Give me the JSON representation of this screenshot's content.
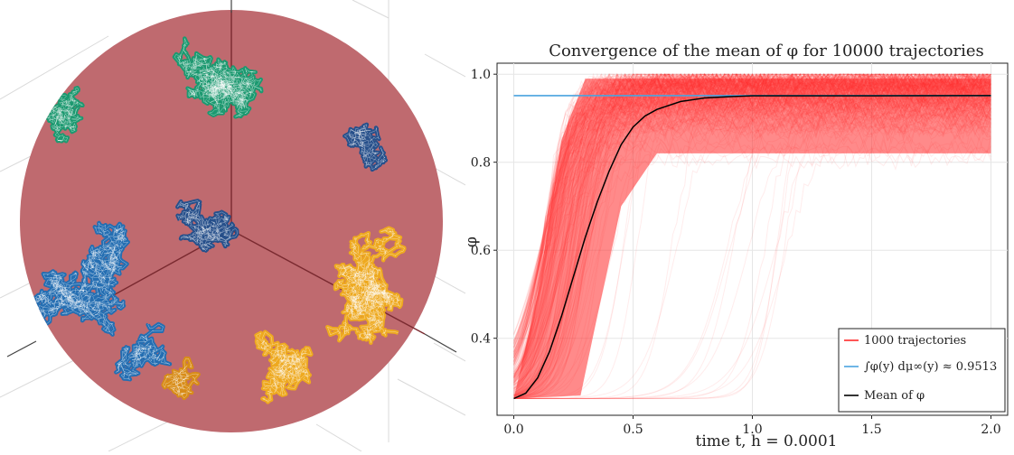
{
  "chart_data": [
    {
      "type": "3d-scatter",
      "description_note": "",
      "sphere_color": "#b9595f",
      "trajectory_colors": [
        "#139c70",
        "#1f4f8c",
        "#f0ad1a",
        "#1b6fb5",
        "#d98e12"
      ]
    },
    {
      "type": "line",
      "title": "Convergence of the mean of φ for 10000 trajectories",
      "xlabel": "time t,   h = 0.0001",
      "ylabel": "φ",
      "xlim": [
        -0.07,
        2.07
      ],
      "ylim": [
        0.225,
        1.025
      ],
      "xticks": [
        0.0,
        0.5,
        1.0,
        1.5,
        2.0
      ],
      "xtick_labels": [
        "0.0",
        "0.5",
        "1.0",
        "1.5",
        "2.0"
      ],
      "yticks": [
        0.4,
        0.6,
        0.8,
        1.0
      ],
      "ytick_labels": [
        "0.4",
        "0.6",
        "0.8",
        "1.0"
      ],
      "grid": true,
      "legend_position": "bottom-right",
      "series": [
        {
          "name": "1000 trajectories",
          "color": "#ff2a2a",
          "kind": "trajectories",
          "start_value": 0.263,
          "max_value": 1.0,
          "count_drawn": 1000
        },
        {
          "name": "∫φ(y) dμ∞(y) ≈ 0.9513",
          "color": "#4aa3df",
          "kind": "constant",
          "value": 0.9513,
          "x": [
            0.0,
            2.0
          ]
        },
        {
          "name": "Mean of φ",
          "color": "#000000",
          "kind": "mean",
          "x": [
            0.0,
            0.05,
            0.1,
            0.15,
            0.2,
            0.25,
            0.3,
            0.35,
            0.4,
            0.45,
            0.5,
            0.55,
            0.6,
            0.7,
            0.8,
            0.9,
            1.0,
            1.2,
            1.5,
            2.0
          ],
          "values": [
            0.263,
            0.275,
            0.31,
            0.37,
            0.45,
            0.54,
            0.63,
            0.71,
            0.78,
            0.84,
            0.88,
            0.905,
            0.92,
            0.938,
            0.946,
            0.949,
            0.951,
            0.951,
            0.951,
            0.9513
          ]
        }
      ],
      "legend": {
        "items": [
          {
            "label": "1000 trajectories",
            "color": "#ff2a2a"
          },
          {
            "label": "∫φ(y) dμ∞(y) ≈ 0.9513",
            "color": "#4aa3df"
          },
          {
            "label": "Mean of φ",
            "color": "#000000"
          }
        ]
      }
    }
  ]
}
